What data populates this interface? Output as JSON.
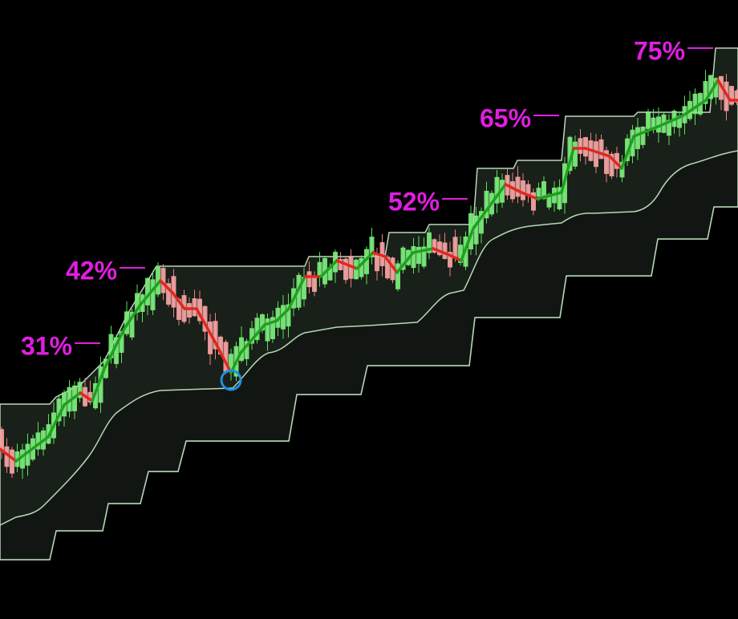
{
  "annotations": [
    {
      "label": "31%"
    },
    {
      "label": "42%"
    },
    {
      "label": "52%"
    },
    {
      "label": "65%"
    },
    {
      "label": "75%"
    }
  ]
}
